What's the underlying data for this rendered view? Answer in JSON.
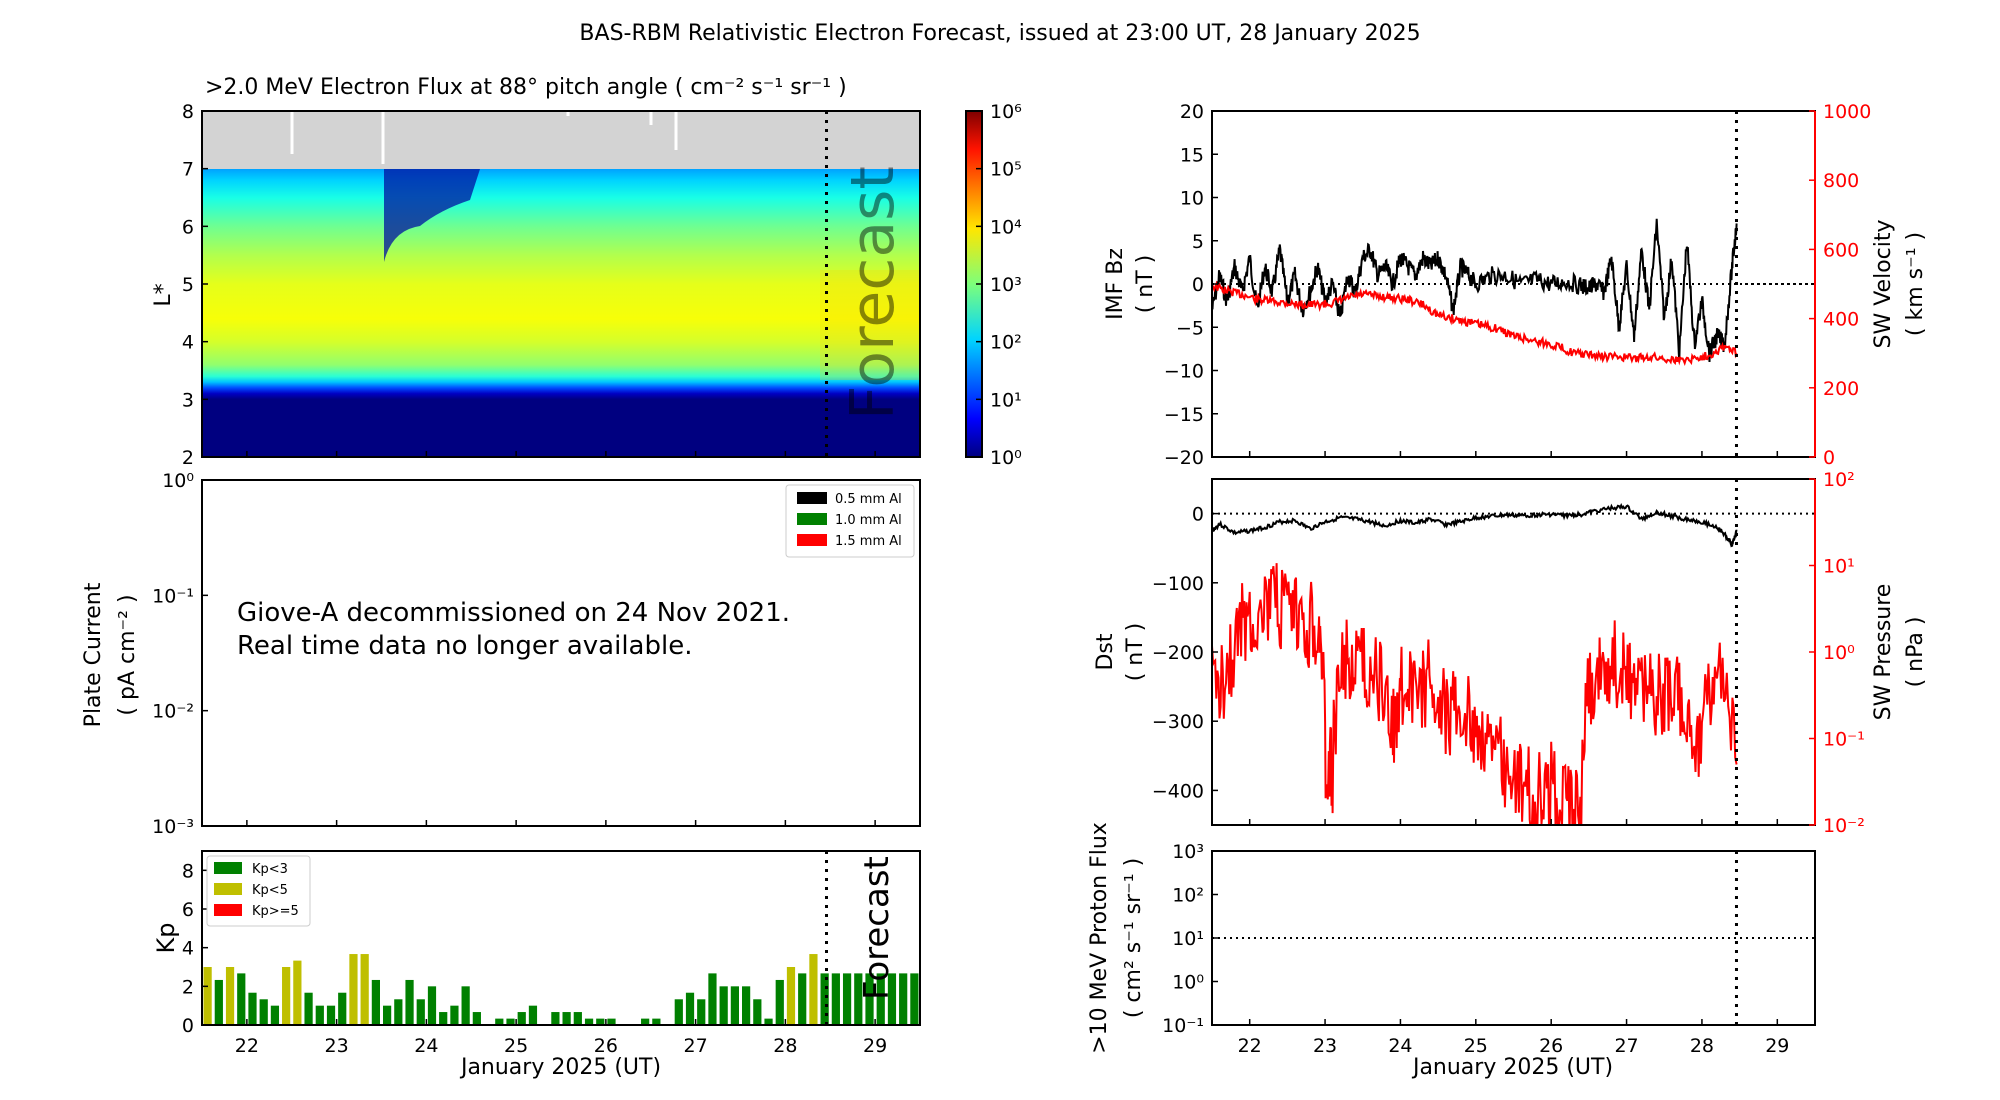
{
  "figure": {
    "title": "BAS-RBM Relativistic Electron Forecast, issued at 23:00 UT, 28 January 2025",
    "xlabel": "January 2025 (UT)",
    "forecast_label": "Forecast",
    "forecast_start_day": 28.4583,
    "colors": {
      "kp_low": "#008000",
      "kp_mid": "#bfbf00",
      "kp_high": "#ff0000",
      "right_axis": "#ff0000",
      "missing": "#d3d3d3"
    }
  },
  "chart_data": [
    {
      "id": "electron-flux",
      "type": "heatmap",
      "title": ">2.0 MeV Electron Flux at 88° pitch angle ( cm⁻² s⁻¹ sr⁻¹ )",
      "ylabel": "L*",
      "xlim": [
        21.5,
        29.5
      ],
      "ylim": [
        2,
        8
      ],
      "x_ticks": [
        "22",
        "23",
        "24",
        "25",
        "26",
        "27",
        "28",
        "29"
      ],
      "y_ticks": [
        "2",
        "3",
        "4",
        "5",
        "6",
        "7",
        "8"
      ],
      "colorbar": {
        "scale": "log",
        "range": [
          1,
          1000000
        ],
        "ticks": [
          "10⁰",
          "10¹",
          "10²",
          "10³",
          "10⁴",
          "10⁵",
          "10⁶"
        ],
        "colormap": "jet"
      },
      "missing_region_L": [
        7,
        8
      ],
      "log10_flux_profile": {
        "L": [
          2.0,
          3.0,
          3.1,
          3.2,
          3.3,
          3.4,
          3.6,
          4.0,
          4.4,
          5.0,
          5.5,
          6.0,
          6.5,
          6.8,
          7.0
        ],
        "values": [
          0.0,
          0.0,
          0.4,
          1.2,
          1.9,
          2.5,
          3.1,
          3.5,
          3.7,
          3.6,
          3.3,
          2.9,
          2.4,
          2.0,
          1.7
        ]
      },
      "notable_dropout": {
        "day": 23.5,
        "L_range": [
          5.4,
          7.0
        ]
      }
    },
    {
      "id": "plate-current",
      "type": "line",
      "ylabel": "Plate Current",
      "ylabel_units": "( pA cm⁻² )",
      "yscale": "log",
      "ylim": [
        0.001,
        1
      ],
      "y_ticks": [
        "10⁻³",
        "10⁻²",
        "10⁻¹",
        "10⁰"
      ],
      "xlim": [
        21.5,
        29.5
      ],
      "legend": [
        {
          "label": "0.5 mm Al",
          "color": "#000000"
        },
        {
          "label": "1.0 mm Al",
          "color": "#008000"
        },
        {
          "label": "1.5 mm Al",
          "color": "#ff0000"
        }
      ],
      "legend_position": "top-right",
      "annotation": [
        "Giove-A decommissioned on 24 Nov 2021.",
        "Real time data no longer available."
      ],
      "series": []
    },
    {
      "id": "kp-index",
      "type": "bar",
      "ylabel": "Kp",
      "ylim": [
        0,
        9
      ],
      "y_ticks": [
        "0",
        "2",
        "4",
        "6",
        "8"
      ],
      "xlim": [
        21.5,
        29.5
      ],
      "x_ticks": [
        "22",
        "23",
        "24",
        "25",
        "26",
        "27",
        "28",
        "29"
      ],
      "bin_hours": 3,
      "start_day": 21.5,
      "legend": [
        {
          "label": "Kp<3",
          "color": "#008000"
        },
        {
          "label": "Kp<5",
          "color": "#bfbf00"
        },
        {
          "label": "Kp>=5",
          "color": "#ff0000"
        }
      ],
      "legend_position": "top-left",
      "values": [
        3.0,
        2.33,
        3.0,
        2.67,
        1.67,
        1.33,
        1.0,
        3.0,
        3.33,
        1.67,
        1.0,
        1.0,
        1.67,
        3.67,
        3.67,
        2.33,
        1.0,
        1.33,
        2.33,
        1.33,
        2.0,
        0.67,
        1.0,
        2.0,
        0.67,
        0,
        0.33,
        0.33,
        0.67,
        1.0,
        0,
        0.67,
        0.67,
        0.67,
        0.33,
        0.33,
        0.33,
        0,
        0,
        0.33,
        0.33,
        0,
        1.33,
        1.67,
        1.33,
        2.67,
        2.0,
        2.0,
        2.0,
        1.33,
        0.33,
        2.33,
        3.0,
        2.67,
        3.67,
        2.67,
        2.67,
        2.67,
        2.67,
        2.67,
        2.67,
        2.67,
        2.67,
        2.67
      ]
    },
    {
      "id": "imf-bz-sw-velocity",
      "type": "line",
      "ylabel": "IMF Bz",
      "ylabel_units": "( nT )",
      "ylim": [
        -20,
        20
      ],
      "y_ticks": [
        "−20",
        "−15",
        "−10",
        "−5",
        "0",
        "5",
        "10",
        "15",
        "20"
      ],
      "y2label": "SW Velocity",
      "y2label_units": "( km s⁻¹ )",
      "y2lim": [
        0,
        1000
      ],
      "y2_ticks": [
        "0",
        "200",
        "400",
        "600",
        "800",
        "1000"
      ],
      "xlim": [
        21.5,
        29.5
      ],
      "reference_line_y": 0,
      "series": [
        {
          "name": "IMF Bz",
          "color": "#000000",
          "x": [
            21.5,
            21.6,
            21.7,
            21.8,
            21.9,
            22.0,
            22.1,
            22.2,
            22.3,
            22.4,
            22.5,
            22.6,
            22.7,
            22.8,
            22.9,
            23.0,
            23.1,
            23.2,
            23.3,
            23.4,
            23.5,
            23.6,
            23.7,
            23.8,
            23.9,
            24.0,
            24.1,
            24.2,
            24.3,
            24.4,
            24.5,
            24.6,
            24.7,
            24.8,
            24.9,
            25.0,
            25.2,
            25.4,
            25.6,
            25.8,
            26.0,
            26.2,
            26.4,
            26.5,
            26.6,
            26.7,
            26.8,
            26.9,
            27.0,
            27.1,
            27.2,
            27.3,
            27.4,
            27.5,
            27.6,
            27.7,
            27.8,
            27.9,
            28.0,
            28.1,
            28.2,
            28.3,
            28.4,
            28.46
          ],
          "y": [
            -3,
            1,
            -2,
            2,
            -1,
            3,
            -3,
            2,
            -1,
            4,
            -2,
            1,
            -3,
            -1,
            2,
            -2,
            0,
            -4,
            1,
            -1,
            3,
            4,
            1,
            2,
            0,
            3,
            2,
            1,
            3,
            2,
            3,
            1,
            -3,
            2,
            1,
            0,
            1,
            1,
            0,
            0.5,
            0,
            0.3,
            -0.2,
            -0.5,
            0,
            -1,
            3,
            -5,
            2,
            -6,
            4,
            -3,
            7,
            -4,
            3,
            -8,
            5,
            -7,
            -2,
            -8,
            -6,
            -7,
            2,
            7
          ]
        },
        {
          "name": "SW Velocity",
          "color": "#ff0000",
          "axis": "right",
          "x": [
            21.5,
            21.7,
            21.9,
            22.1,
            22.3,
            22.5,
            22.7,
            22.9,
            23.1,
            23.3,
            23.5,
            23.7,
            23.9,
            24.1,
            24.3,
            24.5,
            24.7,
            24.9,
            25.1,
            25.3,
            25.5,
            25.7,
            25.9,
            26.1,
            26.3,
            26.5,
            26.7,
            26.9,
            27.1,
            27.3,
            27.5,
            27.7,
            27.9,
            28.1,
            28.3,
            28.46
          ],
          "y": [
            495,
            480,
            470,
            455,
            450,
            445,
            440,
            440,
            445,
            460,
            470,
            465,
            460,
            455,
            440,
            410,
            400,
            390,
            380,
            370,
            350,
            340,
            330,
            320,
            300,
            295,
            290,
            290,
            285,
            290,
            285,
            280,
            285,
            295,
            320,
            300
          ]
        }
      ]
    },
    {
      "id": "dst-sw-pressure",
      "type": "line",
      "ylabel": "Dst",
      "ylabel_units": "( nT )",
      "ylim": [
        -450,
        50
      ],
      "y_ticks": [
        "−400",
        "−300",
        "−200",
        "−100",
        "0"
      ],
      "y2label": "SW Pressure",
      "y2label_units": "( nPa )",
      "y2scale": "log",
      "y2lim": [
        0.01,
        100
      ],
      "y2_ticks": [
        "10⁻²",
        "10⁻¹",
        "10⁰",
        "10¹",
        "10²"
      ],
      "xlim": [
        21.5,
        29.5
      ],
      "reference_line_y": 0,
      "series": [
        {
          "name": "Dst",
          "color": "#000000",
          "x": [
            21.5,
            21.6,
            21.8,
            22.0,
            22.2,
            22.4,
            22.6,
            22.8,
            23.0,
            23.2,
            23.4,
            23.6,
            23.8,
            24.0,
            24.2,
            24.4,
            24.6,
            24.8,
            25.0,
            25.2,
            25.4,
            25.6,
            25.8,
            26.0,
            26.2,
            26.4,
            26.6,
            26.8,
            27.0,
            27.2,
            27.4,
            27.6,
            27.8,
            28.0,
            28.2,
            28.3,
            28.4,
            28.46
          ],
          "y": [
            -25,
            -15,
            -28,
            -25,
            -20,
            -12,
            -10,
            -22,
            -12,
            -6,
            -8,
            -12,
            -18,
            -10,
            -14,
            -8,
            -16,
            -12,
            -6,
            -4,
            -2,
            -3,
            -2,
            -1,
            -3,
            -1,
            4,
            8,
            10,
            -8,
            2,
            -4,
            -8,
            -12,
            -20,
            -30,
            -45,
            -25
          ]
        },
        {
          "name": "SW Pressure",
          "color": "#ff0000",
          "axis": "right",
          "x": [
            21.5,
            21.7,
            21.9,
            22.1,
            22.3,
            22.5,
            22.7,
            22.9,
            23.0,
            23.1,
            23.3,
            23.5,
            23.7,
            23.9,
            24.0,
            24.2,
            24.4,
            24.6,
            24.8,
            25.0,
            25.2,
            25.4,
            25.6,
            25.8,
            26.0,
            26.2,
            26.4,
            26.6,
            26.8,
            27.0,
            27.2,
            27.4,
            27.6,
            27.8,
            28.0,
            28.2,
            28.46
          ],
          "y": [
            0.4,
            0.6,
            2.0,
            3.0,
            3.5,
            2.5,
            2.0,
            2.0,
            0.05,
            0.04,
            0.8,
            0.7,
            0.5,
            0.1,
            0.4,
            0.3,
            0.5,
            0.2,
            0.2,
            0.15,
            0.08,
            0.05,
            0.03,
            0.02,
            0.03,
            0.015,
            0.02,
            0.6,
            0.8,
            0.5,
            0.5,
            0.3,
            0.4,
            0.15,
            0.05,
            0.6,
            0.05
          ]
        }
      ]
    },
    {
      "id": "proton-flux",
      "type": "line",
      "ylabel": ">10 MeV Proton Flux",
      "ylabel_units": "( cm² s⁻¹ sr⁻¹ )",
      "yscale": "log",
      "ylim": [
        0.1,
        1000
      ],
      "y_ticks": [
        "10⁻¹",
        "10⁰",
        "10¹",
        "10²",
        "10³"
      ],
      "xlim": [
        21.5,
        29.5
      ],
      "x_ticks": [
        "22",
        "23",
        "24",
        "25",
        "26",
        "27",
        "28",
        "29"
      ],
      "reference_line_y": 10,
      "series": []
    }
  ]
}
